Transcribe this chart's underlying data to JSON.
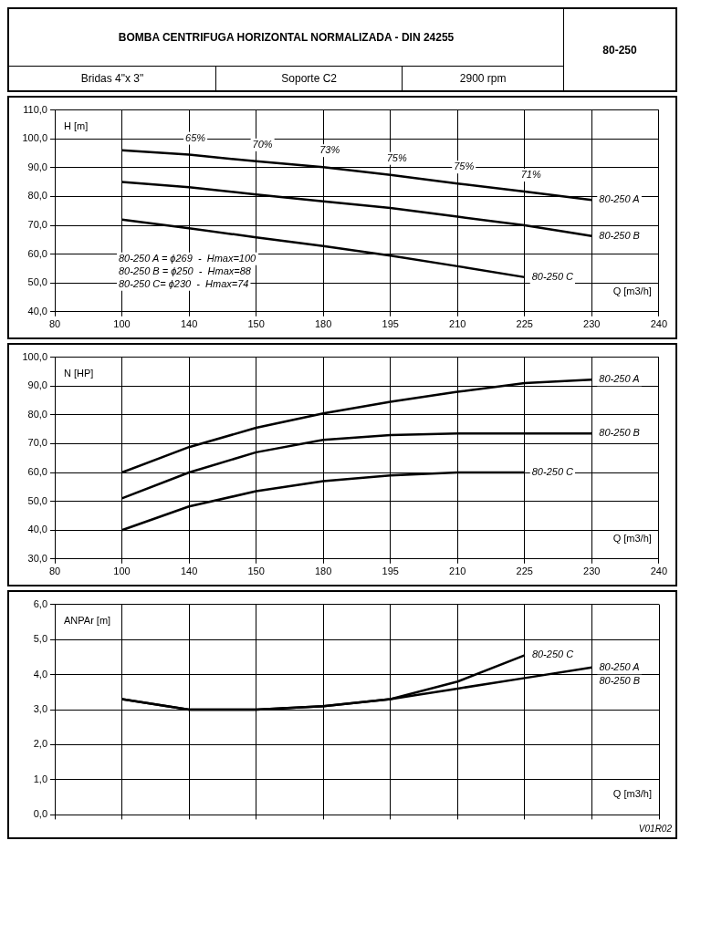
{
  "chart_data": [
    {
      "type": "line",
      "title": "BOMBA CENTRIFUGA HORIZONTAL NORMALIZADA - DIN 24255",
      "subtitle": "80-250",
      "xlabel": "Q [m3/h]",
      "ylabel": "H [m]",
      "categories": [
        "80",
        "100",
        "140",
        "150",
        "180",
        "195",
        "210",
        "225",
        "230",
        "240"
      ],
      "series": [
        {
          "name": "80-250 A",
          "color": "#000000",
          "values": [
            null,
            96,
            94.5,
            92.2,
            90.2,
            87.5,
            84.5,
            81.7,
            78.8,
            null
          ]
        },
        {
          "name": "80-250 B",
          "color": "#000000",
          "values": [
            null,
            85,
            83.2,
            80.7,
            78.3,
            76,
            73,
            70,
            66.3,
            null
          ]
        },
        {
          "name": "80-250 C",
          "color": "#000000",
          "values": [
            null,
            72,
            69,
            65.8,
            62.8,
            59.5,
            55.8,
            52,
            null,
            null
          ]
        }
      ],
      "ylim": [
        40,
        110
      ],
      "yticks": [
        {
          "value": 40,
          "label": "40,0"
        },
        {
          "value": 50,
          "label": "50,0"
        },
        {
          "value": 60,
          "label": "60,0"
        },
        {
          "value": 70,
          "label": "70,0"
        },
        {
          "value": 80,
          "label": "80,0"
        },
        {
          "value": 90,
          "label": "90,0"
        },
        {
          "value": 100,
          "label": "100,0"
        },
        {
          "value": 110,
          "label": "110,0"
        }
      ],
      "grid": true,
      "legend": false,
      "marker": "none",
      "line_style": "solid",
      "annotations": [
        "Bridas 4\"x 3\"",
        "Soporte C2",
        "2900 rpm",
        "80-250 A = ϕ269  -  Hmax=100",
        "80-250 B = ϕ250  -  Hmax=88",
        "80-250 C= ϕ230  -  Hmax=74",
        "65%",
        "70%",
        "73%",
        "75%",
        "75%",
        "71%"
      ]
    },
    {
      "type": "line",
      "xlabel": "Q [m3/h]",
      "ylabel": "N [HP]",
      "categories": [
        "80",
        "100",
        "140",
        "150",
        "180",
        "195",
        "210",
        "225",
        "230",
        "240"
      ],
      "series": [
        {
          "name": "80-250 A",
          "color": "#000000",
          "values": [
            null,
            60,
            68.8,
            75.5,
            80.5,
            84.5,
            88,
            91,
            92.2,
            null
          ]
        },
        {
          "name": "80-250 B",
          "color": "#000000",
          "values": [
            null,
            51,
            60,
            67,
            71.3,
            73,
            73.5,
            73.5,
            73.5,
            null
          ]
        },
        {
          "name": "80-250 C",
          "color": "#000000",
          "values": [
            null,
            40,
            48.2,
            53.5,
            57,
            59,
            60,
            60,
            null,
            null
          ]
        }
      ],
      "ylim": [
        30,
        100
      ],
      "yticks": [
        {
          "value": 30,
          "label": "30,0"
        },
        {
          "value": 40,
          "label": "40,0"
        },
        {
          "value": 50,
          "label": "50,0"
        },
        {
          "value": 60,
          "label": "60,0"
        },
        {
          "value": 70,
          "label": "70,0"
        },
        {
          "value": 80,
          "label": "80,0"
        },
        {
          "value": 90,
          "label": "90,0"
        },
        {
          "value": 100,
          "label": "100,0"
        }
      ],
      "grid": true,
      "legend": false,
      "marker": "none",
      "line_style": "solid"
    },
    {
      "type": "line",
      "xlabel": "Q [m3/h]",
      "ylabel": "ANPAr [m]",
      "categories": [
        "80",
        "100",
        "140",
        "150",
        "180",
        "195",
        "210",
        "225",
        "230",
        "240"
      ],
      "series": [
        {
          "name": "80-250 A",
          "color": "#000000",
          "values": [
            null,
            3.3,
            3.0,
            3.0,
            3.1,
            3.3,
            3.6,
            3.9,
            4.2,
            null
          ]
        },
        {
          "name": "80-250 C",
          "color": "#000000",
          "values": [
            null,
            3.3,
            3.0,
            3.0,
            3.1,
            3.3,
            3.8,
            4.55,
            null,
            null
          ]
        }
      ],
      "ylim": [
        0,
        6
      ],
      "yticks": [
        {
          "value": 0,
          "label": "0,0"
        },
        {
          "value": 1,
          "label": "1,0"
        },
        {
          "value": 2,
          "label": "2,0"
        },
        {
          "value": 3,
          "label": "3,0"
        },
        {
          "value": 4,
          "label": "4,0"
        },
        {
          "value": 5,
          "label": "5,0"
        },
        {
          "value": 6,
          "label": "6,0"
        }
      ],
      "grid": true,
      "legend": false,
      "marker": "none",
      "line_style": "solid",
      "tick_labels": "y",
      "annotations": [
        "80-250 B",
        "V01R02"
      ]
    }
  ]
}
